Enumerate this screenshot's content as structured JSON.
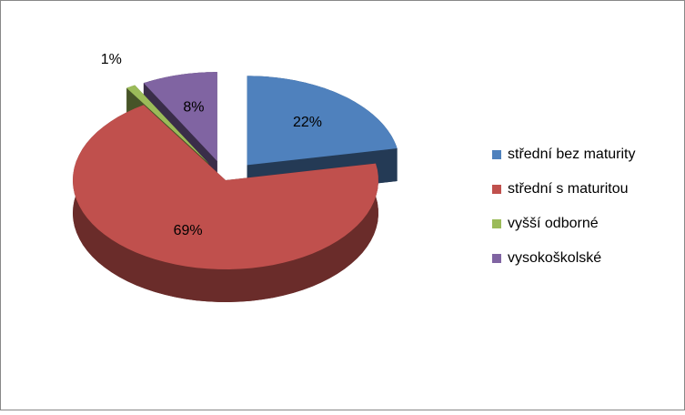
{
  "chart_data": {
    "type": "pie3d",
    "categories": [
      "střední bez maturity",
      "střední s maturitou",
      "vyšší odborné",
      "vysokoškolské"
    ],
    "values": [
      22,
      69,
      1,
      8
    ],
    "value_labels": [
      "22%",
      "69%",
      "1%",
      "8%"
    ],
    "colors": [
      "#4f81bd",
      "#c0504d",
      "#9bbb59",
      "#8064a2"
    ],
    "legend": "right"
  }
}
